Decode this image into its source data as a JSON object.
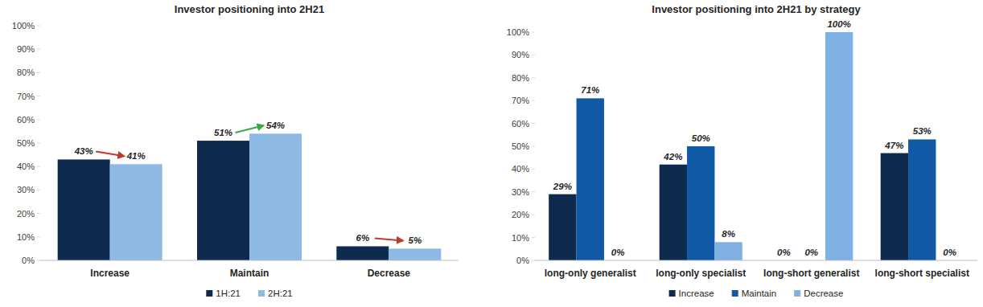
{
  "chart_data": [
    {
      "type": "bar",
      "title": "Investor positioning into 2H21",
      "categories": [
        "Increase",
        "Maintain",
        "Decrease"
      ],
      "series": [
        {
          "name": "1H:21",
          "color": "#0e2a4e",
          "values": [
            43,
            51,
            6
          ],
          "value_labels": [
            "43%",
            "51%",
            "6%"
          ]
        },
        {
          "name": "2H:21",
          "color": "#8fb9e5",
          "values": [
            41,
            54,
            5
          ],
          "value_labels": [
            "41%",
            "54%",
            "5%"
          ]
        }
      ],
      "ylim": [
        0,
        100
      ],
      "yticks": [
        {
          "value": 0,
          "label": "0%"
        },
        {
          "value": 10,
          "label": "10%"
        },
        {
          "value": 20,
          "label": "20%"
        },
        {
          "value": 30,
          "label": "30%"
        },
        {
          "value": 40,
          "label": "40%"
        },
        {
          "value": 50,
          "label": "50%"
        },
        {
          "value": 60,
          "label": "60%"
        },
        {
          "value": 70,
          "label": "70%"
        },
        {
          "value": 80,
          "label": "80%"
        },
        {
          "value": 90,
          "label": "90%"
        },
        {
          "value": 100,
          "label": "100%"
        }
      ],
      "grid": false,
      "legend": "bottom",
      "data_labels": true
    },
    {
      "type": "bar",
      "title": "Investor positioning into 2H21 by strategy",
      "categories": [
        "long-only generalist",
        "long-only specialist",
        "long-short generalist",
        "long-short specialist"
      ],
      "series": [
        {
          "name": "Increase",
          "color": "#0e2a4e",
          "values": [
            29,
            42,
            0,
            47
          ],
          "value_labels": [
            "29%",
            "42%",
            "0%",
            "47%"
          ]
        },
        {
          "name": "Maintain",
          "color": "#0f59a5",
          "values": [
            71,
            50,
            0,
            53
          ],
          "value_labels": [
            "71%",
            "50%",
            "0%",
            "53%"
          ]
        },
        {
          "name": "Decrease",
          "color": "#7fb2e3",
          "values": [
            0,
            8,
            100,
            0
          ],
          "value_labels": [
            "0%",
            "8%",
            "100%",
            "0%"
          ]
        }
      ],
      "ylim": [
        0,
        100
      ],
      "yticks": [
        {
          "value": 0,
          "label": "0%"
        },
        {
          "value": 10,
          "label": "10%"
        },
        {
          "value": 20,
          "label": "20%"
        },
        {
          "value": 30,
          "label": "30%"
        },
        {
          "value": 40,
          "label": "40%"
        },
        {
          "value": 50,
          "label": "50%"
        },
        {
          "value": 60,
          "label": "60%"
        },
        {
          "value": 70,
          "label": "70%"
        },
        {
          "value": 80,
          "label": "80%"
        },
        {
          "value": 90,
          "label": "90%"
        },
        {
          "value": 100,
          "label": "100%"
        }
      ],
      "grid": false,
      "legend": "bottom",
      "data_labels": true
    }
  ]
}
